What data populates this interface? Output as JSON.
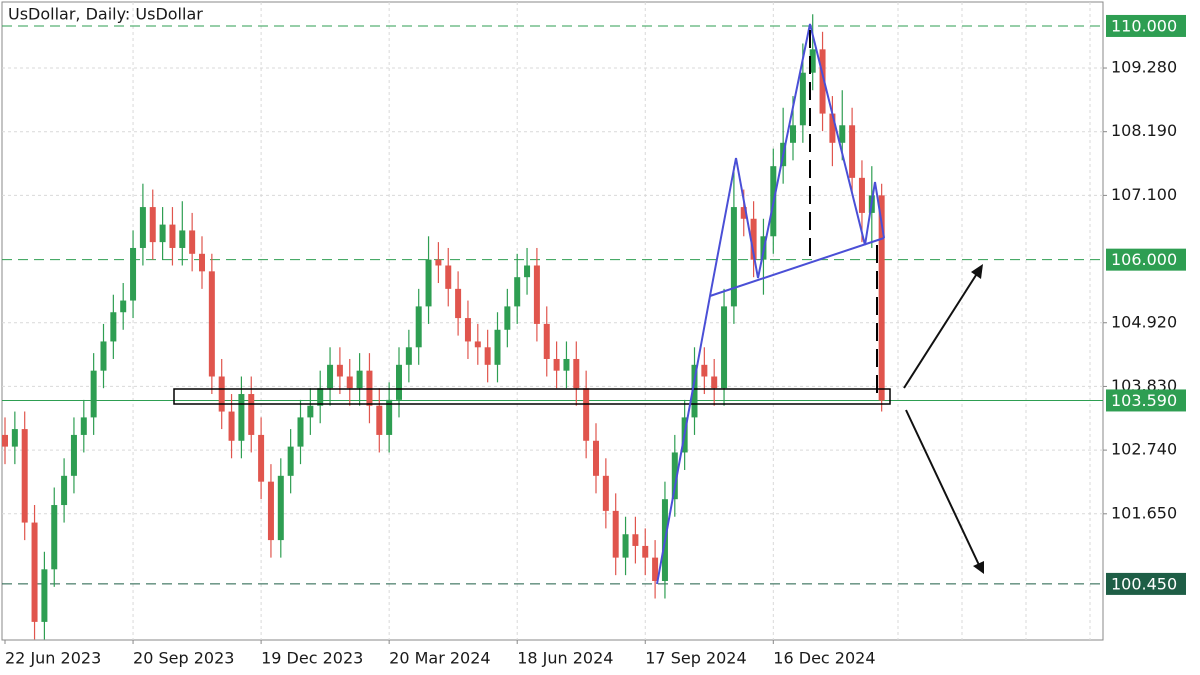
{
  "chart_data": {
    "type": "candlestick",
    "title": "UsDollar, Daily:  UsDollar",
    "up_color": "#2e9e52",
    "down_color": "#e0554d",
    "grid": true,
    "ylim": [
      99.49,
      110.41
    ],
    "yticks": [
      {
        "value": 109.28,
        "label": "109.280"
      },
      {
        "value": 108.19,
        "label": "108.190"
      },
      {
        "value": 107.1,
        "label": "107.100"
      },
      {
        "value": 104.92,
        "label": "104.920"
      },
      {
        "value": 103.83,
        "label": "103.830"
      },
      {
        "value": 102.74,
        "label": "102.740"
      },
      {
        "value": 101.65,
        "label": "101.650"
      }
    ],
    "levels": [
      {
        "value": 110,
        "label": "110.000",
        "color": "#2e9e52"
      },
      {
        "value": 106,
        "label": "106.000",
        "color": "#2e9e52"
      },
      {
        "value": 100.45,
        "label": "100.450",
        "color": "#1e5e46"
      }
    ],
    "price_line": {
      "value": 103.59,
      "label": "103.590",
      "color": "#2e9e52"
    },
    "categories": [
      "22 Jun 2023",
      null,
      null,
      null,
      null,
      null,
      null,
      null,
      null,
      null,
      null,
      null,
      null,
      "20 Sep 2023",
      null,
      null,
      null,
      null,
      null,
      null,
      null,
      null,
      null,
      null,
      null,
      null,
      "19 Dec 2023",
      null,
      null,
      null,
      null,
      null,
      null,
      null,
      null,
      null,
      null,
      null,
      null,
      "20 Mar 2024",
      null,
      null,
      null,
      null,
      null,
      null,
      null,
      null,
      null,
      null,
      null,
      null,
      "18 Jun 2024",
      null,
      null,
      null,
      null,
      null,
      null,
      null,
      null,
      null,
      null,
      null,
      null,
      "17 Sep 2024",
      null,
      null,
      null,
      null,
      null,
      null,
      null,
      null,
      null,
      null,
      null,
      null,
      "16 Dec 2024",
      null,
      null,
      null,
      null,
      null,
      null,
      null,
      null,
      null,
      null,
      null
    ],
    "open": [
      103.0,
      102.8,
      103.1,
      101.5,
      99.8,
      100.7,
      101.8,
      102.3,
      103.0,
      103.3,
      104.1,
      104.6,
      105.1,
      105.3,
      106.2,
      106.9,
      106.3,
      106.6,
      106.2,
      106.5,
      106.1,
      105.8,
      104.0,
      103.4,
      102.9,
      103.7,
      103.0,
      102.2,
      101.2,
      102.3,
      102.8,
      103.3,
      103.5,
      103.8,
      104.2,
      104.0,
      103.8,
      104.1,
      103.5,
      103.0,
      103.6,
      104.2,
      104.5,
      105.2,
      106.0,
      105.9,
      105.5,
      105.0,
      104.6,
      104.5,
      104.2,
      104.8,
      105.2,
      105.7,
      105.9,
      104.9,
      104.3,
      104.1,
      104.3,
      103.8,
      102.9,
      102.3,
      101.7,
      100.9,
      101.3,
      101.1,
      100.9,
      100.5,
      101.9,
      102.7,
      103.3,
      104.2,
      104.0,
      103.8,
      105.2,
      106.9,
      106.7,
      106.0,
      106.4,
      107.6,
      108.0,
      108.3,
      109.2,
      109.6,
      108.5,
      108.0,
      108.3,
      107.4,
      106.8,
      107.1
    ],
    "high": [
      103.3,
      103.4,
      103.4,
      101.8,
      101.0,
      102.1,
      102.6,
      103.3,
      103.6,
      104.4,
      104.9,
      105.4,
      105.6,
      106.5,
      107.3,
      107.2,
      106.9,
      106.9,
      107.0,
      106.8,
      106.4,
      106.1,
      104.3,
      103.7,
      104.0,
      104.0,
      103.3,
      102.5,
      102.6,
      103.1,
      103.6,
      103.8,
      104.1,
      104.5,
      104.5,
      104.3,
      104.4,
      104.4,
      103.8,
      103.9,
      104.5,
      104.8,
      105.5,
      106.4,
      106.3,
      106.2,
      105.8,
      105.3,
      104.9,
      104.8,
      105.1,
      105.5,
      106.1,
      106.2,
      106.2,
      105.2,
      104.6,
      104.6,
      104.6,
      104.1,
      103.2,
      102.6,
      102.0,
      101.6,
      101.6,
      101.4,
      101.2,
      102.2,
      103.0,
      103.6,
      104.5,
      104.5,
      104.3,
      105.5,
      107.6,
      107.2,
      107.0,
      106.7,
      107.9,
      108.6,
      108.8,
      109.7,
      110.2,
      109.9,
      108.8,
      108.9,
      108.6,
      107.7,
      107.6,
      107.3
    ],
    "low": [
      102.5,
      102.5,
      101.2,
      99.5,
      99.5,
      100.4,
      101.5,
      102.0,
      102.7,
      103.0,
      103.8,
      104.3,
      104.8,
      105.0,
      105.9,
      106.0,
      106.0,
      105.9,
      105.9,
      105.8,
      105.5,
      103.7,
      103.1,
      102.6,
      102.6,
      102.7,
      101.9,
      100.9,
      100.9,
      102.0,
      102.5,
      103.0,
      103.2,
      103.5,
      103.7,
      103.5,
      103.5,
      103.2,
      102.7,
      102.7,
      103.3,
      103.9,
      104.2,
      104.9,
      105.6,
      105.2,
      104.7,
      104.3,
      104.2,
      103.9,
      103.9,
      104.5,
      104.9,
      105.4,
      104.6,
      104.0,
      103.8,
      103.8,
      103.5,
      102.6,
      102.0,
      101.4,
      100.6,
      100.6,
      100.8,
      100.6,
      100.2,
      100.2,
      101.6,
      102.4,
      103.0,
      103.7,
      103.5,
      103.5,
      104.9,
      106.4,
      105.7,
      105.4,
      106.1,
      107.3,
      107.7,
      108.0,
      108.9,
      108.2,
      107.6,
      107.7,
      107.1,
      106.3,
      106.2,
      103.4
    ],
    "close": [
      102.8,
      103.1,
      101.5,
      99.8,
      100.7,
      101.8,
      102.3,
      103.0,
      103.3,
      104.1,
      104.6,
      105.1,
      105.3,
      106.2,
      106.9,
      106.3,
      106.6,
      106.2,
      106.5,
      106.1,
      105.8,
      104.0,
      103.4,
      102.9,
      103.7,
      103.0,
      102.2,
      101.2,
      102.3,
      102.8,
      103.3,
      103.5,
      103.8,
      104.2,
      104.0,
      103.8,
      104.1,
      103.5,
      103.0,
      103.6,
      104.2,
      104.5,
      105.2,
      106.0,
      105.9,
      105.5,
      105.0,
      104.6,
      104.5,
      104.2,
      104.8,
      105.2,
      105.7,
      105.9,
      104.9,
      104.3,
      104.1,
      104.3,
      103.8,
      102.9,
      102.3,
      101.7,
      100.9,
      101.3,
      101.1,
      100.9,
      100.5,
      101.9,
      102.7,
      103.3,
      104.2,
      104.0,
      103.8,
      105.2,
      106.9,
      106.7,
      106.0,
      106.4,
      107.6,
      108.0,
      108.3,
      109.2,
      109.6,
      108.5,
      108.0,
      108.3,
      107.4,
      106.8,
      107.1,
      103.59
    ]
  }
}
